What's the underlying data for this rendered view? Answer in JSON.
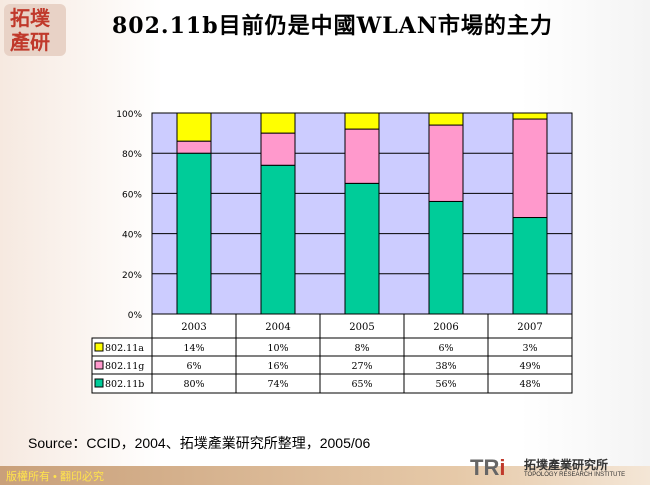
{
  "logo": {
    "text": "拓墣產研"
  },
  "title": "802.11b目前仍是中國WLAN市場的主力",
  "chart_data": {
    "type": "bar",
    "stacked": true,
    "percent": true,
    "categories": [
      "2003",
      "2004",
      "2005",
      "2006",
      "2007"
    ],
    "series": [
      {
        "name": "802.11b",
        "values": [
          80,
          74,
          65,
          56,
          48
        ],
        "labels": [
          "80%",
          "74%",
          "65%",
          "56%",
          "48%"
        ],
        "color": "#00cc99"
      },
      {
        "name": "802.11g",
        "values": [
          6,
          16,
          27,
          38,
          49
        ],
        "labels": [
          "6%",
          "16%",
          "27%",
          "38%",
          "49%"
        ],
        "color": "#ff99cc"
      },
      {
        "name": "802.11a",
        "values": [
          14,
          10,
          8,
          6,
          3
        ],
        "labels": [
          "14%",
          "10%",
          "8%",
          "6%",
          "3%"
        ],
        "color": "#ffff00"
      }
    ],
    "table_order": [
      "802.11a",
      "802.11g",
      "802.11b"
    ],
    "yticks": [
      "0%",
      "20%",
      "40%",
      "60%",
      "80%",
      "100%"
    ],
    "ylim": [
      0,
      100
    ],
    "grid": true,
    "plot_bg": "#ccccff"
  },
  "source": "Source：CCID，2004、拓墣產業研究所整理，2005/06",
  "footer": "版權所有 • 翻印必究",
  "brand": {
    "tri": "TR",
    "tri_i": "i",
    "name": "拓墣產業研究所",
    "sub": "TOPOLOGY RESEARCH INSTITUTE"
  }
}
